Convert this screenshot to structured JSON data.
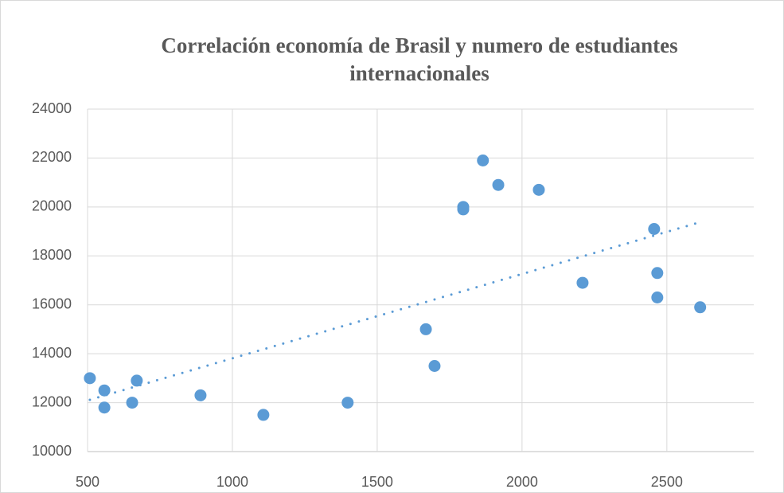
{
  "chart_data": {
    "type": "scatter",
    "title": [
      "Correlación economía de Brasil y numero de estudiantes",
      "internacionales"
    ],
    "color": "#5b9bd5",
    "trendline": "linear",
    "x": [
      508,
      558,
      558,
      654,
      670,
      890,
      1107,
      1398,
      1668,
      1698,
      1797,
      1797,
      1865,
      1918,
      2058,
      2209,
      2456,
      2467,
      2467,
      2615
    ],
    "values": [
      13000,
      12500,
      11800,
      12000,
      12900,
      12300,
      11500,
      12000,
      15000,
      13500,
      20000,
      19900,
      21900,
      20900,
      20700,
      16900,
      19100,
      17300,
      16300,
      15900
    ],
    "xlim": [
      500,
      2800
    ],
    "xticks": [
      500,
      1000,
      1500,
      2000,
      2500
    ],
    "ylim": [
      10000,
      24000
    ],
    "yticks": [
      10000,
      12000,
      14000,
      16000,
      18000,
      20000,
      22000,
      24000
    ],
    "grid": true
  }
}
